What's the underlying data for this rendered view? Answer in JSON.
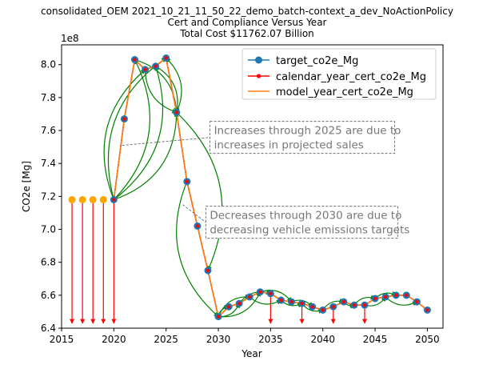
{
  "chart_data": {
    "type": "line",
    "title_lines": [
      "consolidated_OEM 2021_10_21_11_50_22_demo_batch-context_a_dev_NoActionPolicy",
      "Cert and Compliance Versus Year",
      "Total Cost $11762.07 Billion"
    ],
    "xlabel": "Year",
    "ylabel": "CO2e [Mg]",
    "y_scale_label": "1e8",
    "xlim": [
      2015,
      2051.5
    ],
    "ylim": [
      6.4,
      8.12
    ],
    "x_ticks": [
      2015,
      2020,
      2025,
      2030,
      2035,
      2040,
      2045,
      2050
    ],
    "y_ticks": [
      6.4,
      6.6,
      6.8,
      7.0,
      7.2,
      7.4,
      7.6,
      7.8,
      8.0
    ],
    "y_tick_labels": [
      "6.4",
      "6.6",
      "6.8",
      "7.0",
      "7.2",
      "7.4",
      "7.6",
      "7.8",
      "8.0"
    ],
    "x": [
      2020,
      2021,
      2022,
      2023,
      2024,
      2025,
      2026,
      2027,
      2028,
      2029,
      2030,
      2031,
      2032,
      2033,
      2034,
      2035,
      2036,
      2037,
      2038,
      2039,
      2040,
      2041,
      2042,
      2043,
      2044,
      2045,
      2046,
      2047,
      2048,
      2049,
      2050
    ],
    "series": [
      {
        "name": "target_co2e_Mg",
        "color": "#1f77b4",
        "values": [
          7.18,
          7.67,
          8.03,
          7.97,
          7.99,
          8.04,
          7.71,
          7.29,
          7.02,
          6.75,
          6.47,
          6.53,
          6.55,
          6.59,
          6.62,
          6.61,
          6.57,
          6.56,
          6.55,
          6.53,
          6.51,
          6.53,
          6.56,
          6.54,
          6.54,
          6.58,
          6.59,
          6.6,
          6.6,
          6.56,
          6.51
        ]
      },
      {
        "name": "calendar_year_cert_co2e_Mg",
        "color": "#ff0000",
        "values": [
          7.18,
          7.67,
          8.03,
          7.97,
          7.99,
          8.04,
          7.71,
          7.29,
          7.02,
          6.75,
          6.47,
          6.53,
          6.55,
          6.59,
          6.62,
          6.61,
          6.57,
          6.56,
          6.55,
          6.53,
          6.51,
          6.53,
          6.56,
          6.54,
          6.54,
          6.58,
          6.59,
          6.6,
          6.6,
          6.56,
          6.51
        ]
      },
      {
        "name": "model_year_cert_co2e_Mg",
        "color": "#ff7f0e",
        "values": [
          7.18,
          7.67,
          8.03,
          7.97,
          7.99,
          8.04,
          7.71,
          7.29,
          7.02,
          6.75,
          6.47,
          6.53,
          6.55,
          6.59,
          6.62,
          6.61,
          6.57,
          6.56,
          6.55,
          6.53,
          6.51,
          6.53,
          6.56,
          6.54,
          6.54,
          6.58,
          6.59,
          6.6,
          6.6,
          6.56,
          6.51
        ]
      }
    ],
    "pre_period_points": {
      "color": "#ffa500",
      "x": [
        2016,
        2017,
        2018,
        2019
      ],
      "values": [
        7.18,
        7.18,
        7.18,
        7.18
      ]
    },
    "red_down_arrows_x": [
      2016,
      2017,
      2018,
      2019,
      2020,
      2035,
      2038,
      2041,
      2044
    ],
    "red_arrow_color": "#ff0000",
    "green_arrows": {
      "color": "#008000",
      "pairs": [
        [
          2020,
          2022
        ],
        [
          2020,
          2023
        ],
        [
          2020,
          2024
        ],
        [
          2020,
          2025
        ],
        [
          2020,
          2026
        ],
        [
          2022,
          2026
        ],
        [
          2023,
          2026
        ],
        [
          2024,
          2026
        ],
        [
          2026,
          2025
        ],
        [
          2026,
          2029
        ],
        [
          2027,
          2030
        ],
        [
          2030,
          2031
        ],
        [
          2030,
          2032
        ],
        [
          2030,
          2033
        ],
        [
          2030,
          2034
        ],
        [
          2032,
          2035
        ],
        [
          2033,
          2036
        ],
        [
          2034,
          2037
        ],
        [
          2036,
          2038
        ],
        [
          2037,
          2039
        ],
        [
          2038,
          2040
        ],
        [
          2040,
          2042
        ],
        [
          2042,
          2043
        ],
        [
          2043,
          2045
        ],
        [
          2044,
          2046
        ],
        [
          2045,
          2047
        ],
        [
          2046,
          2049
        ]
      ]
    },
    "annotations": [
      {
        "text": "Increases through 2025 are due to\nincreases in projected sales",
        "anchor_x": 2020.8,
        "anchor_y": 7.51,
        "box_x": 2029.2,
        "box_y": 7.655
      },
      {
        "text": "Decreases through 2030 are due to\ndecreasing vehicle emissions targets",
        "anchor_x": 2026.6,
        "anchor_y": 7.15,
        "box_x": 2028.8,
        "box_y": 7.14
      }
    ],
    "legend_position": "upper right",
    "grid": false
  }
}
